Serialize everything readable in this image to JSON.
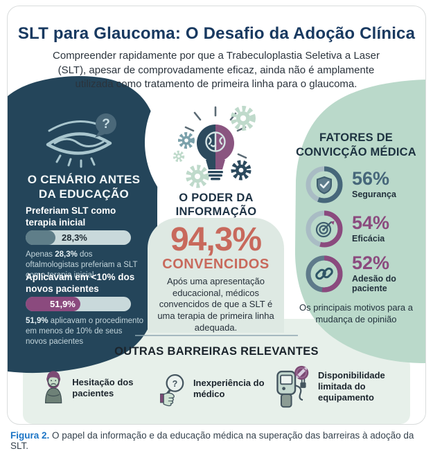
{
  "header": {
    "title": "SLT para Glaucoma: O Desafio da Adoção Clínica",
    "subtitle": "Compreender rapidamente por que a Trabeculoplastia Seletiva a Laser (SLT), apesar de comprovadamente eficaz, ainda não é amplamente utilizada como tratamento de primeira linha para o glaucoma."
  },
  "before_panel": {
    "icon": "closed-eye-question-icon",
    "heading_line1": "O CENÁRIO ANTES",
    "heading_line2": "DA EDUCAÇÃO",
    "stat1": {
      "title": "Preferiam SLT como terapia inicial",
      "value": "28,3%",
      "pct": 28.3,
      "desc_pre": "Apenas ",
      "desc_bold": "28,3%",
      "desc_rest": " dos oftalmologistas preferiam a SLT como terapia inicial"
    },
    "stat2": {
      "title": "Aplicavam em <10% dos novos pacientes",
      "value": "51,9%",
      "pct": 51.9,
      "desc_pre": "",
      "desc_bold": "51,9%",
      "desc_rest": " aplicavam o procedimento em menos de 10% de seus novos pacientes"
    }
  },
  "power_panel": {
    "icon": "brain-lightbulb-gears-icon",
    "heading_line1": "O PODER DA",
    "heading_line2": "INFORMAÇÃO",
    "big_value": "94,3%",
    "big_label": "CONVENCIDOS",
    "desc": "Após uma apresentação educacional, médicos convencidos de que a SLT é uma terapia de primeira linha adequada.",
    "accent_color": "#c8695c"
  },
  "factors_panel": {
    "heading_line1": "FATORES DE",
    "heading_line2": "CONVICÇÃO MÉDICA",
    "factors": [
      {
        "value": "56%",
        "pct": 56,
        "label": "Segurança",
        "icon": "shield-check-icon",
        "color": "#46677a",
        "track": "#a9bcc4"
      },
      {
        "value": "54%",
        "pct": 54,
        "label": "Eficácia",
        "icon": "target-icon",
        "color": "#8b4a7e",
        "track": "#a9bcc4"
      },
      {
        "value": "52%",
        "pct": 52,
        "label": "Adesão do paciente",
        "icon": "chain-link-icon",
        "color": "#8b4a7e",
        "track": "#5e7a8a"
      }
    ],
    "footer": "Os principais motivos para a mudança de opinião"
  },
  "barriers": {
    "heading": "OUTRAS BARREIRAS RELEVANTES",
    "items": [
      {
        "label": "Hesitação dos pacientes",
        "icon": "hesitant-patient-icon"
      },
      {
        "label": "Inexperiência do médico",
        "icon": "magnifier-question-icon"
      },
      {
        "label": "Disponibilidade limitada do equipamento",
        "icon": "limited-equipment-icon"
      }
    ]
  },
  "caption": {
    "label": "Figura 2.",
    "text": " O papel da informação e da educação médica na superação das barreiras à adoção da SLT."
  },
  "colors": {
    "navy_blob": "#24455a",
    "mint_blob": "#bad9ca",
    "bottom_band": "#e7f0ea",
    "center_panel": "#dee9e3",
    "coral": "#c8695c",
    "purple": "#8b4a7e",
    "slate": "#5f7e89",
    "title_blue": "#183960",
    "caption_blue": "#1b74c5"
  },
  "chart_data": [
    {
      "type": "bar",
      "categories": [
        "Preferiam SLT como terapia inicial",
        "Aplicavam em <10% dos novos pacientes"
      ],
      "values": [
        28.3,
        51.9
      ],
      "title": "O cenário antes da educação",
      "xlabel": "",
      "ylabel": "%",
      "ylim": [
        0,
        100
      ]
    },
    {
      "type": "bar",
      "categories": [
        "Segurança",
        "Eficácia",
        "Adesão do paciente"
      ],
      "values": [
        56,
        54,
        52
      ],
      "title": "Fatores de convicção médica",
      "xlabel": "",
      "ylabel": "%",
      "ylim": [
        0,
        100
      ]
    }
  ]
}
